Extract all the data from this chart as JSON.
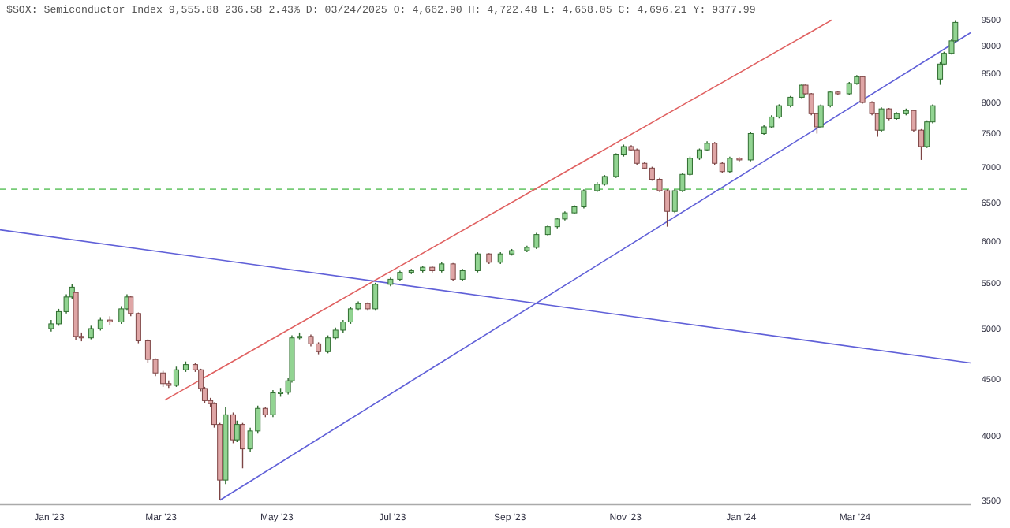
{
  "chart_data": {
    "type": "candlestick",
    "title": "$SOX: Semiconductor Index 9,555.88 236.58 2.43% D: 03/24/2025 O: 4,662.90 H: 4,722.48 L: 4,658.05 C: 4,696.21 Y: 9377.99",
    "log": true,
    "grid": false,
    "xlim": [
      "2022-12-06",
      "2024-05-01"
    ],
    "xticks": [
      {
        "value": "2023-01-01",
        "label": "Jan '23"
      },
      {
        "value": "2023-03-01",
        "label": "Mar '23"
      },
      {
        "value": "2023-05-01",
        "label": "May '23"
      },
      {
        "value": "2023-07-01",
        "label": "Jul '23"
      },
      {
        "value": "2023-09-01",
        "label": "Sep '23"
      },
      {
        "value": "2023-11-01",
        "label": "Nov '23"
      },
      {
        "value": "2024-01-01",
        "label": "Jan '24"
      },
      {
        "value": "2024-03-01",
        "label": "Mar '24"
      }
    ],
    "ylim": [
      3470,
      9900
    ],
    "yticks": [
      3500,
      4000,
      4500,
      5000,
      5500,
      6000,
      6500,
      7000,
      7500,
      8000,
      8500,
      9000,
      9500
    ],
    "x": [
      "2023-01-02",
      "2023-01-06",
      "2023-01-10",
      "2023-01-13",
      "2023-01-15",
      "2023-01-18",
      "2023-01-23",
      "2023-01-28",
      "2023-02-02",
      "2023-02-08",
      "2023-02-11",
      "2023-02-13",
      "2023-02-17",
      "2023-02-22",
      "2023-02-26",
      "2023-03-02",
      "2023-03-05",
      "2023-03-09",
      "2023-03-14",
      "2023-03-19",
      "2023-03-22",
      "2023-03-24",
      "2023-03-27",
      "2023-03-29",
      "2023-04-01",
      "2023-04-04",
      "2023-04-08",
      "2023-04-10",
      "2023-04-13",
      "2023-04-17",
      "2023-04-21",
      "2023-04-25",
      "2023-04-29",
      "2023-05-03",
      "2023-05-07",
      "2023-05-09",
      "2023-05-13",
      "2023-05-19",
      "2023-05-23",
      "2023-05-28",
      "2023-06-01",
      "2023-06-05",
      "2023-06-09",
      "2023-06-13",
      "2023-06-18",
      "2023-06-22",
      "2023-06-30",
      "2023-07-05",
      "2023-07-11",
      "2023-07-17",
      "2023-07-22",
      "2023-07-27",
      "2023-08-02",
      "2023-08-07",
      "2023-08-15",
      "2023-08-21",
      "2023-08-27",
      "2023-09-02",
      "2023-09-10",
      "2023-09-15",
      "2023-09-21",
      "2023-09-26",
      "2023-09-30",
      "2023-10-05",
      "2023-10-10",
      "2023-10-17",
      "2023-10-21",
      "2023-10-27",
      "2023-10-31",
      "2023-11-04",
      "2023-11-07",
      "2023-11-11",
      "2023-11-15",
      "2023-11-19",
      "2023-11-23",
      "2023-11-27",
      "2023-12-01",
      "2023-12-05",
      "2023-12-10",
      "2023-12-14",
      "2023-12-18",
      "2023-12-22",
      "2023-12-26",
      "2023-12-31",
      "2024-01-06",
      "2024-01-13",
      "2024-01-17",
      "2024-01-21",
      "2024-01-27",
      "2024-02-02",
      "2024-02-04",
      "2024-02-07",
      "2024-02-10",
      "2024-02-12",
      "2024-02-17",
      "2024-02-21",
      "2024-02-27",
      "2024-03-02",
      "2024-03-05",
      "2024-03-10",
      "2024-03-13",
      "2024-03-15",
      "2024-03-19",
      "2024-03-23",
      "2024-03-28",
      "2024-04-01",
      "2024-04-05",
      "2024-04-08",
      "2024-04-11",
      "2024-04-15",
      "2024-04-17",
      "2024-04-21",
      "2024-04-23"
    ],
    "ohlc": [
      [
        5000,
        5090,
        4970,
        5050
      ],
      [
        5050,
        5210,
        5030,
        5180
      ],
      [
        5180,
        5370,
        5160,
        5340
      ],
      [
        5340,
        5480,
        5320,
        5450
      ],
      [
        5390,
        5400,
        4880,
        4920
      ],
      [
        4920,
        4960,
        4870,
        4905
      ],
      [
        4905,
        5030,
        4890,
        5000
      ],
      [
        5000,
        5120,
        4980,
        5090
      ],
      [
        5090,
        5130,
        5040,
        5070
      ],
      [
        5070,
        5240,
        5050,
        5210
      ],
      [
        5210,
        5370,
        5190,
        5340
      ],
      [
        5340,
        5350,
        5130,
        5160
      ],
      [
        5160,
        5170,
        4850,
        4875
      ],
      [
        4875,
        4890,
        4660,
        4690
      ],
      [
        4690,
        4700,
        4530,
        4560
      ],
      [
        4560,
        4580,
        4430,
        4460
      ],
      [
        4460,
        4490,
        4420,
        4444
      ],
      [
        4444,
        4620,
        4430,
        4590
      ],
      [
        4590,
        4670,
        4570,
        4640
      ],
      [
        4640,
        4660,
        4570,
        4590
      ],
      [
        4590,
        4600,
        4390,
        4415
      ],
      [
        4415,
        4430,
        4280,
        4305
      ],
      [
        4305,
        4330,
        4250,
        4278
      ],
      [
        4278,
        4290,
        4070,
        4097
      ],
      [
        4097,
        4110,
        3500,
        3650
      ],
      [
        3650,
        4250,
        3620,
        4180
      ],
      [
        4180,
        4200,
        3940,
        3968
      ],
      [
        3968,
        4130,
        3950,
        4097
      ],
      [
        4097,
        4110,
        3740,
        3894
      ],
      [
        3894,
        4070,
        3870,
        4042
      ],
      [
        4042,
        4260,
        4020,
        4236
      ],
      [
        4236,
        4250,
        4160,
        4180
      ],
      [
        4180,
        4400,
        4160,
        4375
      ],
      [
        4375,
        4420,
        4340,
        4380
      ],
      [
        4380,
        4510,
        4360,
        4486
      ],
      [
        4486,
        4930,
        4470,
        4905
      ],
      [
        4905,
        4960,
        4890,
        4920
      ],
      [
        4920,
        4940,
        4820,
        4844
      ],
      [
        4844,
        4860,
        4740,
        4766
      ],
      [
        4766,
        4930,
        4750,
        4905
      ],
      [
        4905,
        5010,
        4890,
        4984
      ],
      [
        4984,
        5090,
        4960,
        5070
      ],
      [
        5070,
        5230,
        5050,
        5210
      ],
      [
        5210,
        5290,
        5190,
        5267
      ],
      [
        5267,
        5280,
        5190,
        5210
      ],
      [
        5210,
        5500,
        5190,
        5482
      ],
      [
        5482,
        5560,
        5460,
        5540
      ],
      [
        5540,
        5640,
        5520,
        5620
      ],
      [
        5620,
        5660,
        5600,
        5640
      ],
      [
        5640,
        5700,
        5620,
        5680
      ],
      [
        5680,
        5690,
        5620,
        5640
      ],
      [
        5640,
        5740,
        5620,
        5720
      ],
      [
        5720,
        5730,
        5520,
        5540
      ],
      [
        5540,
        5660,
        5520,
        5640
      ],
      [
        5640,
        5860,
        5620,
        5840
      ],
      [
        5840,
        5850,
        5720,
        5740
      ],
      [
        5740,
        5860,
        5720,
        5840
      ],
      [
        5840,
        5900,
        5820,
        5880
      ],
      [
        5880,
        5940,
        5860,
        5920
      ],
      [
        5920,
        6100,
        5900,
        6080
      ],
      [
        6080,
        6200,
        6060,
        6180
      ],
      [
        6180,
        6300,
        6160,
        6280
      ],
      [
        6280,
        6380,
        6260,
        6360
      ],
      [
        6360,
        6460,
        6340,
        6440
      ],
      [
        6440,
        6680,
        6420,
        6660
      ],
      [
        6660,
        6780,
        6640,
        6750
      ],
      [
        6750,
        6880,
        6730,
        6860
      ],
      [
        6860,
        7200,
        6840,
        7175
      ],
      [
        7175,
        7330,
        7150,
        7300
      ],
      [
        7300,
        7320,
        7230,
        7250
      ],
      [
        7250,
        7270,
        7030,
        7050
      ],
      [
        7050,
        7070,
        6960,
        6980
      ],
      [
        6980,
        7000,
        6800,
        6820
      ],
      [
        6820,
        6840,
        6640,
        6660
      ],
      [
        6660,
        6680,
        6180,
        6380
      ],
      [
        6380,
        6680,
        6360,
        6660
      ],
      [
        6660,
        6910,
        6640,
        6890
      ],
      [
        6890,
        7150,
        6870,
        7125
      ],
      [
        7125,
        7270,
        7100,
        7250
      ],
      [
        7250,
        7380,
        7230,
        7350
      ],
      [
        7350,
        7370,
        7030,
        7050
      ],
      [
        7050,
        7070,
        6910,
        6930
      ],
      [
        6930,
        7150,
        6910,
        7125
      ],
      [
        7125,
        7140,
        7080,
        7100
      ],
      [
        7100,
        7520,
        7080,
        7500
      ],
      [
        7500,
        7630,
        7480,
        7605
      ],
      [
        7605,
        7790,
        7590,
        7763
      ],
      [
        7763,
        7970,
        7740,
        7947
      ],
      [
        7947,
        8110,
        7920,
        8088
      ],
      [
        8088,
        8320,
        8070,
        8294
      ],
      [
        8294,
        8310,
        8120,
        8147
      ],
      [
        8147,
        8160,
        7790,
        7816
      ],
      [
        7816,
        7830,
        7500,
        7605
      ],
      [
        7605,
        7970,
        7590,
        7947
      ],
      [
        7947,
        8200,
        7920,
        8176
      ],
      [
        8176,
        8190,
        8120,
        8147
      ],
      [
        8147,
        8350,
        8130,
        8323
      ],
      [
        8323,
        8470,
        8300,
        8441
      ],
      [
        8441,
        8450,
        7980,
        8000
      ],
      [
        8000,
        8020,
        7790,
        7816
      ],
      [
        7816,
        7830,
        7450,
        7553
      ],
      [
        7553,
        7920,
        7530,
        7895
      ],
      [
        7895,
        7910,
        7710,
        7737
      ],
      [
        7737,
        7840,
        7720,
        7816
      ],
      [
        7816,
        7900,
        7790,
        7868
      ],
      [
        7868,
        7880,
        7530,
        7553
      ],
      [
        7553,
        7570,
        7100,
        7300
      ],
      [
        7300,
        7710,
        7280,
        7684
      ],
      [
        7684,
        7970,
        7660,
        7947
      ],
      [
        8400,
        8700,
        8300,
        8666
      ],
      [
        8666,
        8890,
        8640,
        8861
      ],
      [
        8861,
        9120,
        8840,
        9094
      ],
      [
        9094,
        9480,
        9070,
        9450
      ]
    ],
    "series": [
      {
        "type": "line",
        "color": "#e06060",
        "x": [
          "2023-03-03",
          "2024-02-18"
        ],
        "values": [
          4310,
          9500
        ]
      },
      {
        "type": "line",
        "color": "#6060d8",
        "x": [
          "2022-12-06",
          "2024-05-01"
        ],
        "values": [
          6140,
          4656
        ]
      },
      {
        "type": "line",
        "color": "#6060d8",
        "x": [
          "2023-04-01",
          "2024-05-01"
        ],
        "values": [
          3500,
          9250
        ]
      }
    ],
    "ref_lines": [
      {
        "axis": "y",
        "value": 6680,
        "color": "#77cc77",
        "line_style": "dashed"
      }
    ]
  }
}
